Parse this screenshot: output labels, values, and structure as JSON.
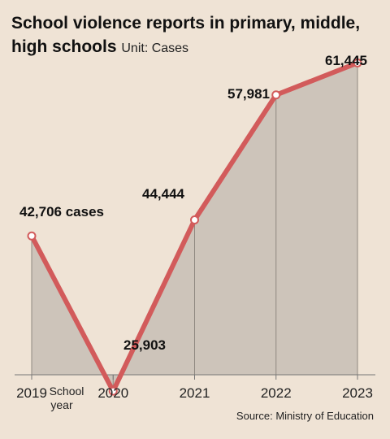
{
  "chart_data": {
    "type": "area",
    "title": "School violence reports in primary, middle, high schools",
    "unit": "Unit: Cases",
    "categories": [
      "2019",
      "2020",
      "2021",
      "2022",
      "2023"
    ],
    "x_suffix_first": "School year",
    "values": [
      42706,
      25903,
      44444,
      57981,
      61445
    ],
    "data_labels": [
      "42,706 cases",
      "25,903",
      "44,444",
      "57,981",
      "61,445"
    ],
    "ylim": [
      15000,
      65000
    ],
    "grid": false,
    "colors": {
      "line": "#d25b5b",
      "fill": "#cdc4ba",
      "marker_fill": "#ffffff"
    },
    "source": "Source: Ministry of Education"
  }
}
